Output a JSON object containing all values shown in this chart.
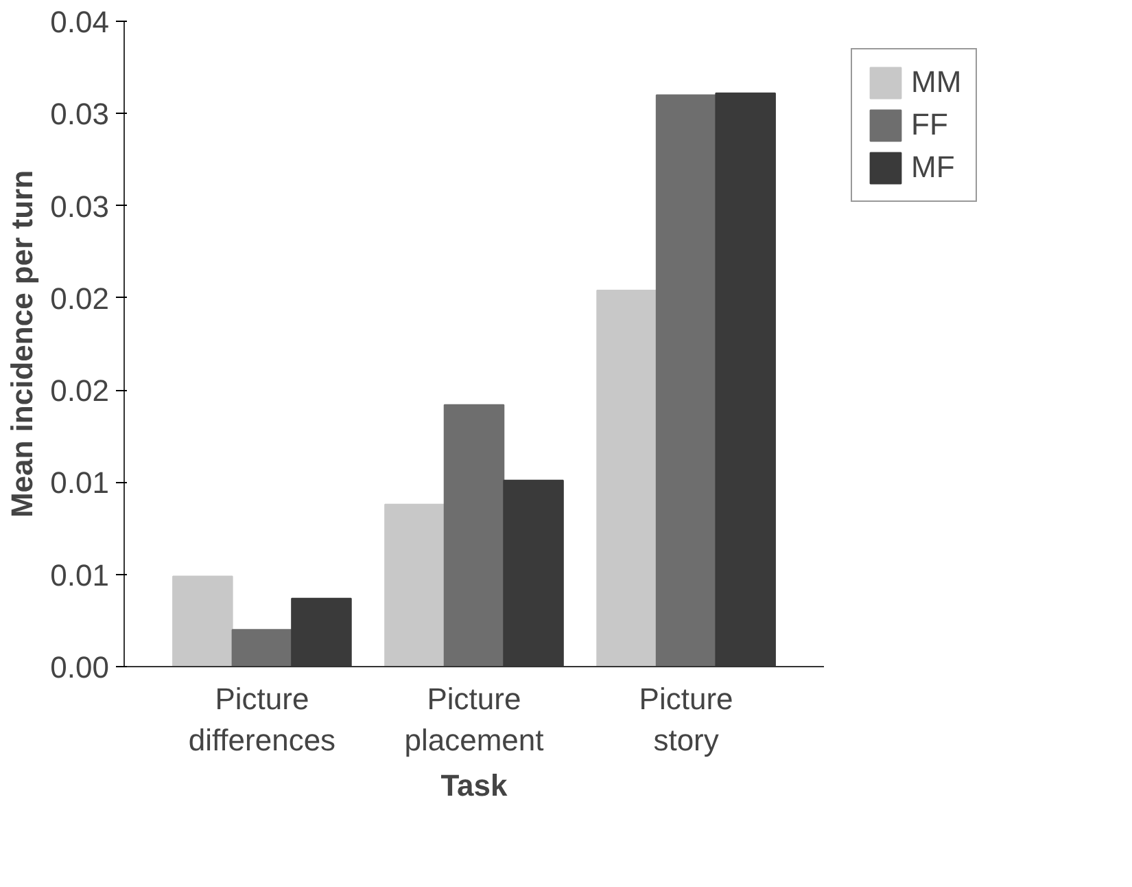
{
  "chart_data": {
    "type": "bar",
    "xlabel": "Task",
    "ylabel": "Mean incidence per turn",
    "categories": [
      "Picture differences",
      "Picture placement",
      "Picture story"
    ],
    "series": [
      {
        "name": "MM",
        "color": "#c8c8c8",
        "values": [
          0.0049,
          0.0088,
          0.0204
        ]
      },
      {
        "name": "FF",
        "color": "#6e6e6e",
        "values": [
          0.002,
          0.0142,
          0.031
        ]
      },
      {
        "name": "MF",
        "color": "#3a3a3a",
        "values": [
          0.0037,
          0.0101,
          0.0311
        ]
      }
    ],
    "ylim": [
      0,
      0.035
    ],
    "yticks": [
      "0.00",
      {
        "value": 0.005,
        "label": "0.01"
      },
      {
        "value": 0.01,
        "label": "0.01"
      },
      {
        "value": 0.015,
        "label": "0.02"
      },
      {
        "value": 0.02,
        "label": "0.02"
      },
      {
        "value": 0.025,
        "label": "0.03"
      },
      {
        "value": 0.03,
        "label": "0.03"
      },
      {
        "value": 0.035,
        "label": "0.04"
      }
    ],
    "grid": false,
    "legend": "top right"
  }
}
